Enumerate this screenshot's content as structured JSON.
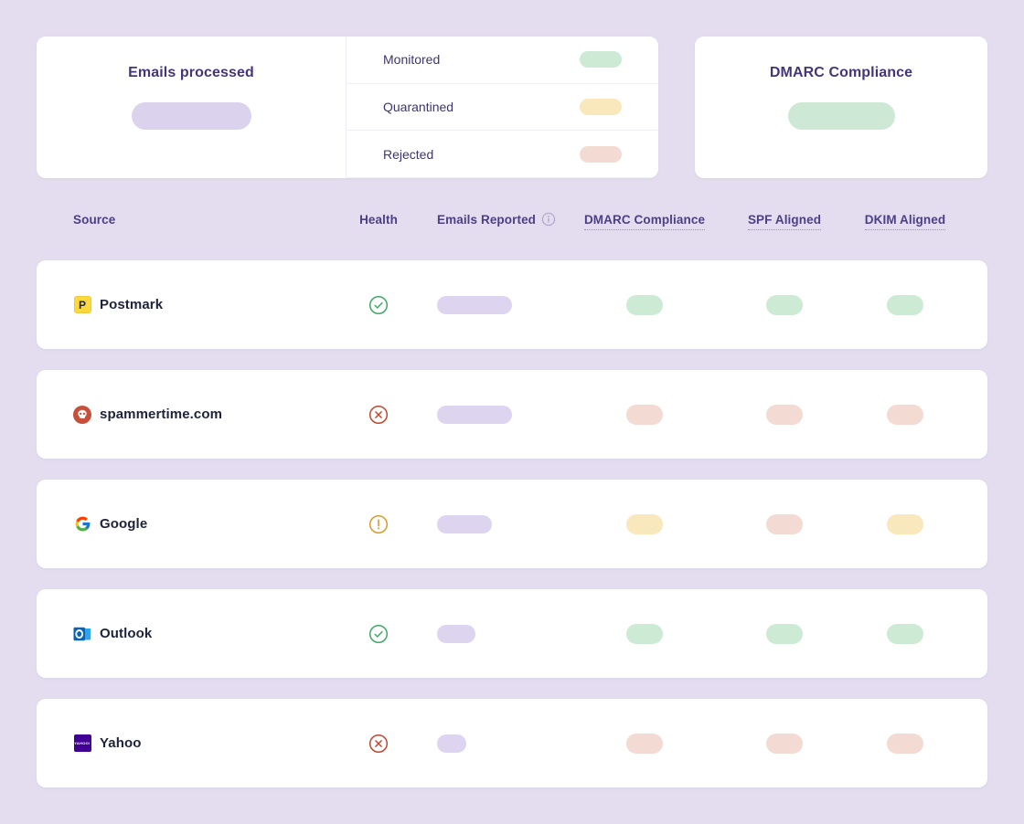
{
  "summary": {
    "emails_processed": {
      "title": "Emails processed"
    },
    "legend": [
      {
        "label": "Monitored",
        "status": "pass"
      },
      {
        "label": "Quarantined",
        "status": "warn"
      },
      {
        "label": "Rejected",
        "status": "fail"
      }
    ],
    "dmarc_compliance": {
      "title": "DMARC Compliance"
    }
  },
  "table": {
    "columns": {
      "source": "Source",
      "health": "Health",
      "emails_reported": "Emails Reported",
      "dmarc": "DMARC Compliance",
      "spf": "SPF Aligned",
      "dkim": "DKIM Aligned"
    },
    "rows": [
      {
        "source": "Postmark",
        "icon": "postmark-logo",
        "icon_letter": "P",
        "health": "healthy",
        "emails_reported_pill_width": 82,
        "dmarc": "pass",
        "spf": "pass",
        "dkim": "pass"
      },
      {
        "source": "spammertime.com",
        "icon": "spammertime-logo",
        "health": "error",
        "emails_reported_pill_width": 82,
        "dmarc": "fail",
        "spf": "fail",
        "dkim": "fail"
      },
      {
        "source": "Google",
        "icon": "google-logo",
        "health": "warning",
        "emails_reported_pill_width": 60,
        "dmarc": "warn",
        "spf": "fail",
        "dkim": "warn"
      },
      {
        "source": "Outlook",
        "icon": "outlook-logo",
        "health": "healthy",
        "emails_reported_pill_width": 42,
        "dmarc": "pass",
        "spf": "pass",
        "dkim": "pass"
      },
      {
        "source": "Yahoo",
        "icon": "yahoo-logo",
        "icon_text": "YAHOO!",
        "health": "error",
        "emails_reported_pill_width": 32,
        "dmarc": "fail",
        "spf": "fail",
        "dkim": "fail"
      }
    ]
  },
  "colors": {
    "background": "#E3DDEF",
    "card": "#FFFFFF",
    "title_text": "#443678",
    "header_text": "#4C3F85",
    "row_text": "#20243A",
    "pill_purple": "#DDD5F0",
    "pill_green": "#CDEAD5",
    "pill_yellow": "#F8E8BB",
    "pill_red": "#F3DBD3",
    "health_green": "#3EA963",
    "health_red": "#C2462E",
    "health_amber": "#D79A2B"
  }
}
